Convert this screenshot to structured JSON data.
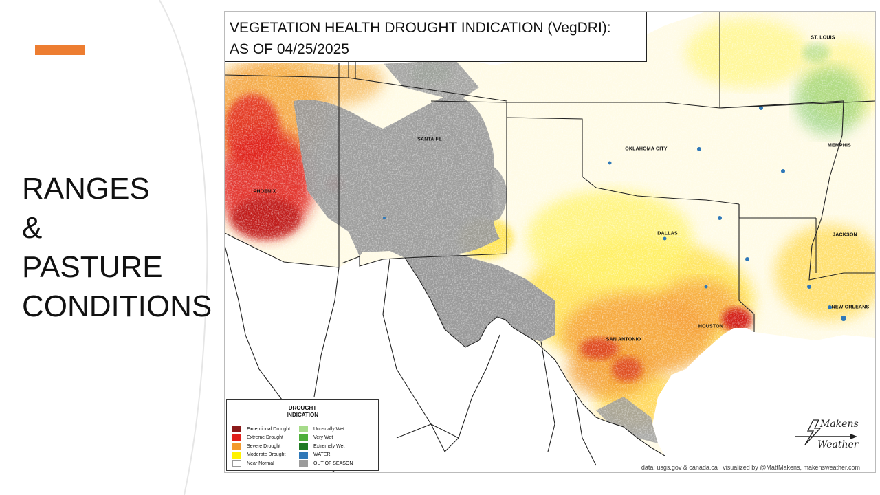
{
  "slide": {
    "title_lines": [
      "RANGES",
      "&",
      "PASTURE",
      "CONDITIONS"
    ],
    "accent_color": "#ED7D31"
  },
  "map": {
    "title_line1": "VEGETATION HEALTH DROUGHT INDICATION (VegDRI):",
    "title_line2": "AS OF 04/25/2025",
    "cities": {
      "st_louis": "ST. LOUIS",
      "santa_fe": "SANTA FE",
      "oklahoma_city": "OKLAHOMA CITY",
      "memphis": "MEMPHIS",
      "phoenix": "PHOENIX",
      "dallas": "DALLAS",
      "jackson": "JACKSON",
      "new_orleans": "NEW ORLEANS",
      "houston": "HOUSTON",
      "san_antonio": "SAN ANTONIO"
    },
    "legend": {
      "title_line1": "DROUGHT",
      "title_line2": "INDICATION",
      "left": [
        {
          "label": "Exceptional Drought",
          "color": "#8B1A1A"
        },
        {
          "label": "Extreme Drought",
          "color": "#E0201B"
        },
        {
          "label": "Severe Drought",
          "color": "#F39A2C"
        },
        {
          "label": "Moderate Drought",
          "color": "#FFF200"
        },
        {
          "label": "Near Normal",
          "color": "#FFFFFF"
        }
      ],
      "right": [
        {
          "label": "Unusually Wet",
          "color": "#A6DB8A"
        },
        {
          "label": "Very Wet",
          "color": "#4DAE3A"
        },
        {
          "label": "Extremely Wet",
          "color": "#1F7A24"
        },
        {
          "label": "WATER",
          "color": "#2F78B8"
        },
        {
          "label": "OUT OF SEASON",
          "color": "#9B9B9B"
        }
      ]
    },
    "logo": {
      "word1": "Makens",
      "word2": "Weather"
    },
    "credit": "data: usgs.gov & canada.ca | visualized by @MattMakens, makensweather.com"
  }
}
